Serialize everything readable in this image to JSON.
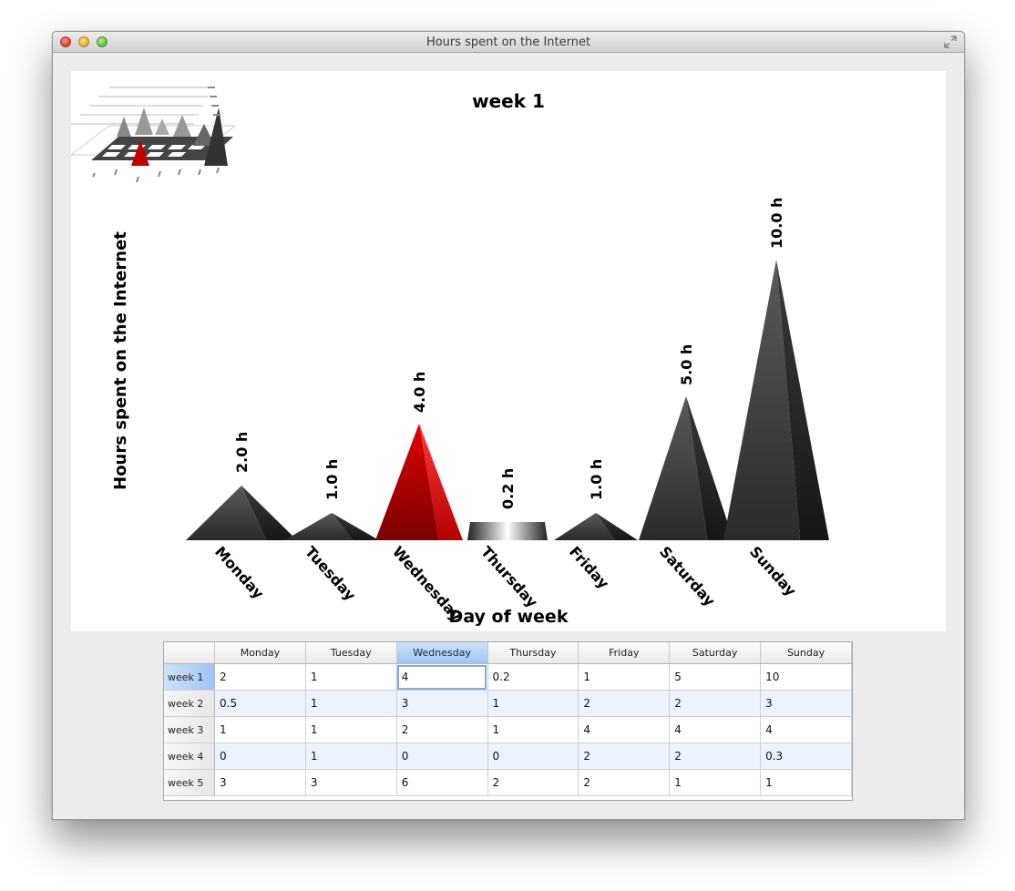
{
  "window": {
    "title": "Hours spent on the Internet"
  },
  "colors": {
    "highlight": "#d40000",
    "bar": "#333333"
  },
  "chart_data": {
    "type": "bar",
    "title": "week 1",
    "xlabel": "Day of week",
    "ylabel": "Hours spent on the Internet",
    "categories": [
      "Monday",
      "Tuesday",
      "Wednesday",
      "Thursday",
      "Friday",
      "Saturday",
      "Sunday"
    ],
    "values": [
      2,
      1,
      4,
      0.2,
      1,
      5,
      10
    ],
    "value_labels": [
      "2.0 h",
      "1.0 h",
      "4.0 h",
      "0.2 h",
      "1.0 h",
      "5.0 h",
      "10.0 h"
    ],
    "highlighted_category": "Wednesday",
    "mark_shape": "pyramid"
  },
  "table": {
    "columns": [
      "Monday",
      "Tuesday",
      "Wednesday",
      "Thursday",
      "Friday",
      "Saturday",
      "Sunday"
    ],
    "selected_column": 2,
    "selected_row": 0,
    "rows": [
      {
        "label": "week 1",
        "cells": [
          "2",
          "1",
          "4",
          "0.2",
          "1",
          "5",
          "10"
        ]
      },
      {
        "label": "week 2",
        "cells": [
          "0.5",
          "1",
          "3",
          "1",
          "2",
          "2",
          "3"
        ]
      },
      {
        "label": "week 3",
        "cells": [
          "1",
          "1",
          "2",
          "1",
          "4",
          "4",
          "4"
        ]
      },
      {
        "label": "week 4",
        "cells": [
          "0",
          "1",
          "0",
          "0",
          "2",
          "2",
          "0.3"
        ]
      },
      {
        "label": "week 5",
        "cells": [
          "3",
          "3",
          "6",
          "2",
          "2",
          "1",
          "1"
        ]
      }
    ]
  }
}
